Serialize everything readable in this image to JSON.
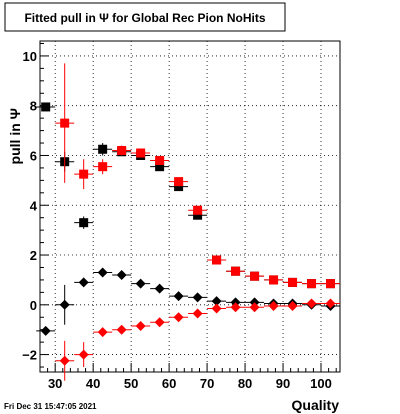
{
  "chart_data": {
    "type": "scatter",
    "title": "Fitted pull in  Ψ  for Global Rec Pion NoHits",
    "xlabel": "Quality",
    "ylabel": "pull in  Ψ",
    "timestamp": "Fri Dec 31 15:47:05 2021",
    "xlim": [
      26,
      105
    ],
    "ylim": [
      -2.7,
      10.6
    ],
    "grid": true,
    "x_ticks": [
      30,
      40,
      50,
      60,
      70,
      80,
      90,
      100
    ],
    "y_ticks": [
      -2,
      0,
      2,
      4,
      6,
      8,
      10
    ],
    "series": [
      {
        "marker": "square",
        "color": "#000000",
        "x": [
          27.5,
          32.5,
          37.5,
          42.5,
          47.5,
          52.5,
          57.5,
          62.5,
          67.5,
          72.5,
          77.5,
          82.5,
          87.5,
          92.5,
          97.5,
          102.5
        ],
        "y": [
          7.95,
          5.75,
          3.3,
          6.25,
          6.15,
          6.0,
          5.55,
          4.75,
          3.6,
          1.8,
          1.35,
          1.15,
          1.0,
          0.9,
          0.85,
          0.85
        ],
        "err": [
          0.15,
          0.4,
          0.25,
          0.25,
          0.15,
          0.1,
          0.1,
          0.1,
          0.1,
          0.1,
          0.05,
          0.05,
          0.05,
          0.05,
          0.05,
          0.05
        ]
      },
      {
        "marker": "square",
        "color": "#ff0000",
        "x": [
          32.5,
          37.5,
          42.5,
          47.5,
          52.5,
          57.5,
          62.5,
          67.5,
          72.5,
          77.5,
          82.5,
          87.5,
          92.5,
          97.5,
          102.5
        ],
        "y": [
          7.3,
          5.25,
          5.55,
          6.2,
          6.1,
          5.8,
          4.95,
          3.8,
          1.8,
          1.35,
          1.15,
          1.0,
          0.9,
          0.85,
          0.85
        ],
        "err": [
          2.4,
          0.6,
          0.3,
          0.2,
          0.15,
          0.15,
          0.1,
          0.1,
          0.1,
          0.05,
          0.05,
          0.05,
          0.05,
          0.05,
          0.05
        ]
      },
      {
        "marker": "diamond",
        "color": "#000000",
        "x": [
          27.5,
          32.5,
          37.5,
          42.5,
          47.5,
          52.5,
          57.5,
          62.5,
          67.5,
          72.5,
          77.5,
          82.5,
          87.5,
          92.5,
          97.5,
          102.5
        ],
        "y": [
          -1.05,
          0.0,
          0.9,
          1.3,
          1.2,
          0.85,
          0.65,
          0.35,
          0.3,
          0.15,
          0.1,
          0.1,
          0.05,
          0.05,
          0.0,
          -0.05
        ],
        "err": [
          0.15,
          0.8,
          0.15,
          0.15,
          0.1,
          0.1,
          0.1,
          0.05,
          0.05,
          0.05,
          0.05,
          0.05,
          0.05,
          0.05,
          0.05,
          0.05
        ]
      },
      {
        "marker": "diamond",
        "color": "#ff0000",
        "x": [
          32.5,
          37.5,
          42.5,
          47.5,
          52.5,
          57.5,
          62.5,
          67.5,
          72.5,
          77.5,
          82.5,
          87.5,
          92.5,
          97.5,
          102.5
        ],
        "y": [
          -2.25,
          -2.0,
          -1.1,
          -1.0,
          -0.85,
          -0.7,
          -0.5,
          -0.35,
          -0.15,
          -0.1,
          -0.1,
          -0.05,
          -0.05,
          0.05,
          0.05
        ],
        "err": [
          0.8,
          0.5,
          0.15,
          0.1,
          0.1,
          0.1,
          0.05,
          0.05,
          0.05,
          0.05,
          0.05,
          0.05,
          0.05,
          0.05,
          0.05
        ]
      }
    ]
  }
}
